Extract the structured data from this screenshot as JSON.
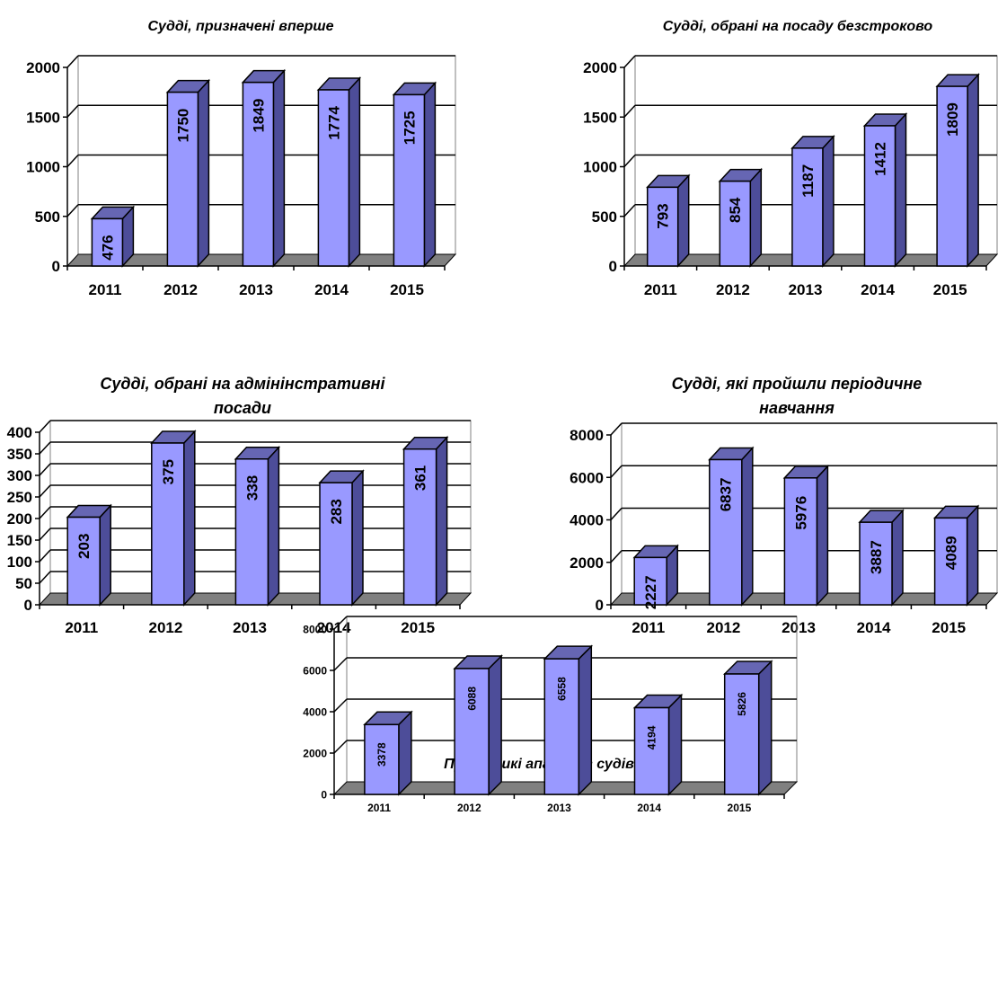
{
  "chart_data": [
    {
      "type": "bar",
      "title": "Судді, призначені вперше",
      "categories": [
        "2011",
        "2012",
        "2013",
        "2014",
        "2015"
      ],
      "values": [
        476,
        1750,
        1849,
        1774,
        1725
      ],
      "ylim": [
        0,
        2000
      ],
      "yticks": [
        "0",
        "500",
        "1000",
        "1500",
        "2000"
      ],
      "grid": true,
      "three_d": true,
      "bar_color": "#9999ff"
    },
    {
      "type": "bar",
      "title": "Судді, обрані на посаду безстроково",
      "categories": [
        "2011",
        "2012",
        "2013",
        "2014",
        "2015"
      ],
      "values": [
        793,
        854,
        1187,
        1412,
        1809
      ],
      "ylim": [
        0,
        2000
      ],
      "yticks": [
        "0",
        "500",
        "1000",
        "1500",
        "2000"
      ],
      "grid": true,
      "three_d": true,
      "bar_color": "#9999ff"
    },
    {
      "type": "bar",
      "title": "Судді, обрані на адмінінстративні посади",
      "title_lines": [
        "Судді, обрані на адмінінстративні",
        "посади"
      ],
      "categories": [
        "2011",
        "2012",
        "2013",
        "2014",
        "2015"
      ],
      "values": [
        203,
        375,
        338,
        283,
        361
      ],
      "ylim": [
        0,
        400
      ],
      "yticks": [
        "0",
        "50",
        "100",
        "150",
        "200",
        "250",
        "300",
        "350",
        "400"
      ],
      "grid": true,
      "three_d": true,
      "bar_color": "#9999ff"
    },
    {
      "type": "bar",
      "title": "Судді, які пройшли періодичне навчання",
      "title_lines": [
        "Судді, які пройшли періодичне",
        "навчання"
      ],
      "categories": [
        "2011",
        "2012",
        "2013",
        "2014",
        "2015"
      ],
      "values": [
        2227,
        6837,
        5976,
        3887,
        4089
      ],
      "ylim": [
        0,
        8000
      ],
      "yticks": [
        "0",
        "2000",
        "4000",
        "6000",
        "8000"
      ],
      "grid": true,
      "three_d": true,
      "bar_color": "#9999ff"
    },
    {
      "type": "bar",
      "title": "Працівникі апаратів судів",
      "categories": [
        "2011",
        "2012",
        "2013",
        "2014",
        "2015"
      ],
      "values": [
        3378,
        6088,
        6558,
        4194,
        5826
      ],
      "ylim": [
        0,
        8000
      ],
      "yticks": [
        "0",
        "2000",
        "4000",
        "6000",
        "8000"
      ],
      "grid": true,
      "three_d": true,
      "bar_color": "#9999ff"
    }
  ]
}
